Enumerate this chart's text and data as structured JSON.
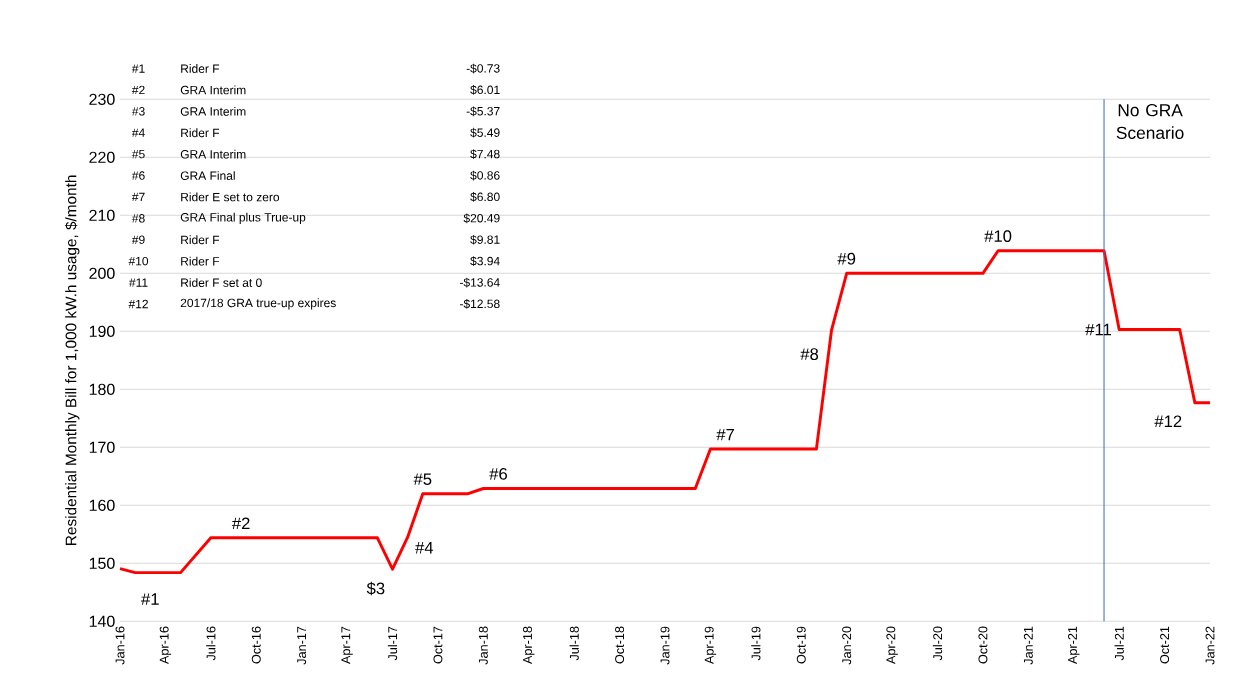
{
  "chart_data": {
    "type": "line",
    "ylabel": "Residential Monthly Bill for 1,000 kW.h usage, $/month",
    "x": [
      "2016-01",
      "2016-02",
      "2016-05",
      "2016-07",
      "2017-06",
      "2017-07",
      "2017-08",
      "2017-09",
      "2017-12",
      "2018-01",
      "2019-03",
      "2019-04",
      "2019-11",
      "2019-12",
      "2020-01",
      "2020-10",
      "2020-11",
      "2021-06",
      "2021-07",
      "2021-11",
      "2021-12",
      "2022-01"
    ],
    "series": [
      {
        "color": "#ff0000",
        "values": [
          149.1,
          148.4,
          148.4,
          154.4,
          154.4,
          149.0,
          154.5,
          162.0,
          162.0,
          162.9,
          162.9,
          169.7,
          169.7,
          190.2,
          200.0,
          200.0,
          203.9,
          203.9,
          190.3,
          190.3,
          177.7,
          177.7
        ]
      }
    ],
    "xlim": [
      "2016-01",
      "2022-01"
    ],
    "xticks": [
      {
        "value": "2016-01",
        "label": "Jan-16"
      },
      {
        "value": "2016-04",
        "label": "Apr-16"
      },
      {
        "value": "2016-07",
        "label": "Jul-16"
      },
      {
        "value": "2016-10",
        "label": "Oct-16"
      },
      {
        "value": "2017-01",
        "label": "Jan-17"
      },
      {
        "value": "2017-04",
        "label": "Apr-17"
      },
      {
        "value": "2017-07",
        "label": "Jul-17"
      },
      {
        "value": "2017-10",
        "label": "Oct-17"
      },
      {
        "value": "2018-01",
        "label": "Jan-18"
      },
      {
        "value": "2018-04",
        "label": "Apr-18"
      },
      {
        "value": "2018-07",
        "label": "Jul-18"
      },
      {
        "value": "2018-10",
        "label": "Oct-18"
      },
      {
        "value": "2019-01",
        "label": "Jan-19"
      },
      {
        "value": "2019-04",
        "label": "Apr-19"
      },
      {
        "value": "2019-07",
        "label": "Jul-19"
      },
      {
        "value": "2019-10",
        "label": "Oct-19"
      },
      {
        "value": "2020-01",
        "label": "Jan-20"
      },
      {
        "value": "2020-04",
        "label": "Apr-20"
      },
      {
        "value": "2020-07",
        "label": "Jul-20"
      },
      {
        "value": "2020-10",
        "label": "Oct-20"
      },
      {
        "value": "2021-01",
        "label": "Jan-21"
      },
      {
        "value": "2021-04",
        "label": "Apr-21"
      },
      {
        "value": "2021-07",
        "label": "Jul-21"
      },
      {
        "value": "2021-10",
        "label": "Oct-21"
      },
      {
        "value": "2022-01",
        "label": "Jan-22"
      }
    ],
    "ylim": [
      140,
      230
    ],
    "yticks": [
      140,
      150,
      160,
      170,
      180,
      190,
      200,
      210,
      220,
      230
    ],
    "grid": "y",
    "marker": "none",
    "line_style": "solid",
    "ref_lines": [
      {
        "axis": "x",
        "value": "2021-06",
        "label": "No GRA Scenario",
        "color": "#4472c4"
      }
    ],
    "annotations": [
      "#1",
      "Rider F",
      "-$0.73",
      "#2",
      "GRA Interim",
      "$6.01",
      "#3",
      "GRA Interim",
      "-$5.37",
      "#4",
      "Rider F",
      "$5.49",
      "#5",
      "GRA Interim",
      "$7.48",
      "#6",
      "GRA Final",
      "$0.86",
      "#7",
      "Rider E set to zero",
      "$6.80",
      "#8",
      "GRA Final plus True-up",
      "$20.49",
      "#9",
      "Rider F",
      "$9.81",
      "#10",
      "Rider F",
      "$3.94",
      "#11",
      "Rider F set at 0",
      "-$13.64",
      "#12",
      "2017/18 GRA true-up expires",
      "-$12.58",
      {
        "text": "#1",
        "x": "2016-03",
        "y": 148.4
      },
      {
        "text": "#2",
        "x": "2016-09",
        "y": 154.4
      },
      {
        "text": "$3",
        "x": "2017-07",
        "y": 149.0
      },
      {
        "text": "#4",
        "x": "2017-08",
        "y": 154.5
      },
      {
        "text": "#5",
        "x": "2017-09",
        "y": 162.0
      },
      {
        "text": "#6",
        "x": "2018-02",
        "y": 162.9
      },
      {
        "text": "#7",
        "x": "2019-05",
        "y": 169.7
      },
      {
        "text": "#8",
        "x": "2019-12",
        "y": 190.2
      },
      {
        "text": "#9",
        "x": "2020-01",
        "y": 200.0
      },
      {
        "text": "#10",
        "x": "2020-11",
        "y": 203.9
      },
      {
        "text": "#11",
        "x": "2021-07",
        "y": 190.3
      },
      {
        "text": "#12",
        "x": "2021-12",
        "y": 177.7
      }
    ]
  }
}
